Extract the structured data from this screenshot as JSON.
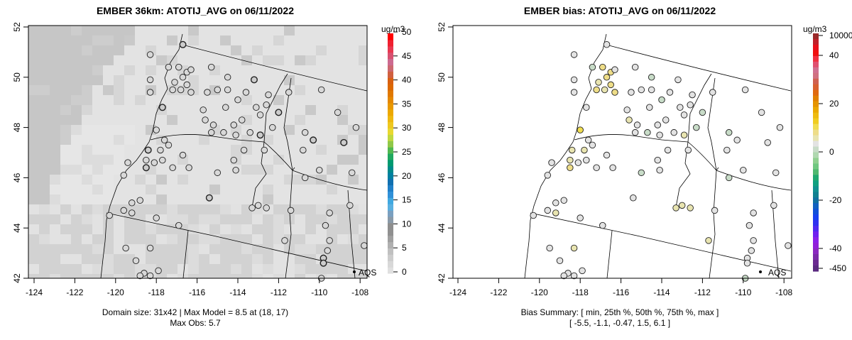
{
  "left_panel": {
    "title": "EMBER 36km: ATOTIJ_AVG on 06/11/2022",
    "caption_line1": "Domain size: 31x42 | Max Model = 8.5 at (18, 17)",
    "caption_line2": "Max Obs: 5.7",
    "colorbar": {
      "unit": "ug/m3",
      "labels": [
        "0",
        "5",
        "10",
        "15",
        "20",
        "25",
        "30",
        "35",
        "40",
        "45",
        "50"
      ],
      "range": [
        0,
        50
      ]
    }
  },
  "right_panel": {
    "title": "EMBER bias: ATOTIJ_AVG on 06/11/2022",
    "caption_line1": "Bias Summary: [ min, 25th %, 50th %, 75th %, max ]",
    "caption_line2": "[ -5.5,   -1.1,   -0.47,   1.5,   6.1 ]",
    "colorbar": {
      "unit": "ug/m3",
      "labels": [
        "10000",
        "40",
        "20",
        "0",
        "-20",
        "-40",
        "-450"
      ]
    }
  },
  "legend": {
    "label": "AQS"
  },
  "axes": {
    "x_ticks": [
      "-124",
      "-122",
      "-120",
      "-118",
      "-116",
      "-114",
      "-112",
      "-110",
      "-108"
    ],
    "y_ticks": [
      "42",
      "44",
      "46",
      "48",
      "50",
      "52"
    ]
  },
  "stations": [
    [
      -116.7,
      51.3,
      3,
      0.3
    ],
    [
      -118.3,
      50.9,
      1,
      -0.4
    ],
    [
      -117.4,
      50.4,
      2,
      -1.5
    ],
    [
      -116.9,
      50.4,
      1,
      3.5
    ],
    [
      -116.5,
      50.2,
      2,
      4.2
    ],
    [
      -116.3,
      50.3,
      1,
      0.2
    ],
    [
      -116.7,
      50.0,
      1,
      3.8
    ],
    [
      -117.1,
      49.8,
      2,
      2.4
    ],
    [
      -116.5,
      49.7,
      1,
      4.5
    ],
    [
      -116.8,
      49.5,
      2,
      3.2
    ],
    [
      -117.2,
      49.5,
      1,
      5.1
    ],
    [
      -116.3,
      49.4,
      2,
      4.0
    ],
    [
      -118.3,
      49.9,
      1,
      -0.3
    ],
    [
      -118.3,
      49.4,
      1,
      -0.5
    ],
    [
      -117.7,
      48.8,
      3,
      0.1
    ],
    [
      -115.3,
      50.4,
      1,
      -0.6
    ],
    [
      -114.5,
      50.0,
      2,
      -1.3
    ],
    [
      -113.2,
      49.9,
      3,
      -0.4
    ],
    [
      -115.5,
      49.4,
      2,
      -0.2
    ],
    [
      -115.0,
      49.5,
      1,
      -0.8
    ],
    [
      -114.5,
      49.5,
      1,
      -0.3
    ],
    [
      -113.6,
      49.4,
      2,
      -0.5
    ],
    [
      -114.0,
      49.1,
      1,
      -1.6
    ],
    [
      -112.5,
      49.3,
      2,
      -0.4
    ],
    [
      -112.6,
      48.9,
      2,
      -0.6
    ],
    [
      -112.0,
      48.6,
      3,
      -2.2
    ],
    [
      -113.1,
      48.8,
      1,
      -0.3
    ],
    [
      -114.6,
      48.8,
      2,
      -0.9
    ],
    [
      -115.7,
      48.7,
      2,
      -0.2
    ],
    [
      -115.6,
      48.3,
      1,
      1.2
    ],
    [
      -115.2,
      48.1,
      2,
      -0.4
    ],
    [
      -115.3,
      47.8,
      1,
      -0.5
    ],
    [
      -114.7,
      47.8,
      1,
      -1.4
    ],
    [
      -114.2,
      48.1,
      2,
      -0.7
    ],
    [
      -114.1,
      47.7,
      1,
      -0.4
    ],
    [
      -113.8,
      48.3,
      2,
      -0.3
    ],
    [
      -113.4,
      47.8,
      1,
      -1.1
    ],
    [
      -112.9,
      47.7,
      3,
      1.8
    ],
    [
      -112.9,
      48.5,
      1,
      -0.2
    ],
    [
      -112.3,
      48.0,
      2,
      -1.7
    ],
    [
      -111.5,
      49.4,
      1,
      -0.6
    ],
    [
      -109.9,
      49.5,
      1,
      -0.4
    ],
    [
      -109.1,
      48.6,
      1,
      -0.3
    ],
    [
      -110.7,
      47.8,
      2,
      -1.8
    ],
    [
      -110.3,
      47.5,
      3,
      -0.5
    ],
    [
      -108.8,
      47.4,
      3,
      -0.3
    ],
    [
      -108.2,
      48.0,
      1,
      -0.2
    ],
    [
      -108.4,
      46.2,
      1,
      -0.4
    ],
    [
      -110.0,
      46.3,
      1,
      -0.3
    ],
    [
      -110.7,
      46.0,
      2,
      -1.5
    ],
    [
      -110.8,
      47.1,
      1,
      -0.2
    ],
    [
      -112.7,
      47.1,
      1,
      -0.6
    ],
    [
      -113.7,
      47.1,
      1,
      -0.4
    ],
    [
      -114.2,
      46.7,
      1,
      -0.3
    ],
    [
      -114.1,
      46.3,
      1,
      -0.5
    ],
    [
      -115.0,
      46.2,
      1,
      -1.9
    ],
    [
      -115.4,
      45.2,
      3,
      -0.3
    ],
    [
      -116.4,
      46.4,
      1,
      -0.2
    ],
    [
      -116.7,
      46.9,
      1,
      -0.4
    ],
    [
      -117.2,
      46.4,
      1,
      -0.3
    ],
    [
      -117.7,
      46.7,
      1,
      -0.5
    ],
    [
      -118.0,
      47.9,
      2,
      5.8
    ],
    [
      -117.6,
      47.5,
      1,
      0.4
    ],
    [
      -117.8,
      47.1,
      1,
      2.5
    ],
    [
      -118.4,
      47.1,
      3,
      3.1
    ],
    [
      -118.5,
      46.7,
      2,
      1.5
    ],
    [
      -118.5,
      46.4,
      3,
      4.0
    ],
    [
      -118.1,
      46.6,
      1,
      1.1
    ],
    [
      -117.4,
      47.3,
      1,
      0.2
    ],
    [
      -119.4,
      46.6,
      1,
      -0.3
    ],
    [
      -119.6,
      46.1,
      1,
      -0.5
    ],
    [
      -120.3,
      44.5,
      1,
      -0.2
    ],
    [
      -119.6,
      44.7,
      1,
      -0.3
    ],
    [
      -119.2,
      45.0,
      1,
      -0.4
    ],
    [
      -118.8,
      45.1,
      1,
      -0.1
    ],
    [
      -119.2,
      44.6,
      1,
      1.4
    ],
    [
      -118.0,
      44.4,
      2,
      -0.5
    ],
    [
      -119.5,
      43.2,
      1,
      -0.2
    ],
    [
      -118.3,
      43.2,
      1,
      2.6
    ],
    [
      -118.6,
      42.2,
      1,
      -0.3
    ],
    [
      -118.8,
      42.1,
      1,
      -0.2
    ],
    [
      -118.3,
      42.1,
      2,
      -0.4
    ],
    [
      -119.0,
      42.7,
      1,
      -0.5
    ],
    [
      -117.9,
      42.3,
      1,
      -0.3
    ],
    [
      -116.9,
      44.1,
      1,
      -0.4
    ],
    [
      -111.7,
      43.5,
      1,
      2.2
    ],
    [
      -111.4,
      44.7,
      1,
      -0.6
    ],
    [
      -109.5,
      44.6,
      1,
      -0.3
    ],
    [
      -109.7,
      44.1,
      1,
      -0.2
    ],
    [
      -109.5,
      43.5,
      1,
      -0.4
    ],
    [
      -109.6,
      43.1,
      1,
      -0.3
    ],
    [
      -109.8,
      42.8,
      3,
      -0.5
    ],
    [
      -109.9,
      42.0,
      1,
      -1.2
    ],
    [
      -108.5,
      44.9,
      1,
      -0.4
    ],
    [
      -107.8,
      43.3,
      1,
      -0.3
    ],
    [
      -113.3,
      44.8,
      2,
      2.8
    ],
    [
      -113.0,
      44.9,
      2,
      3.3
    ],
    [
      -112.6,
      44.8,
      1,
      2.0
    ],
    [
      -109.8,
      42.6,
      3,
      -0.4
    ]
  ]
}
